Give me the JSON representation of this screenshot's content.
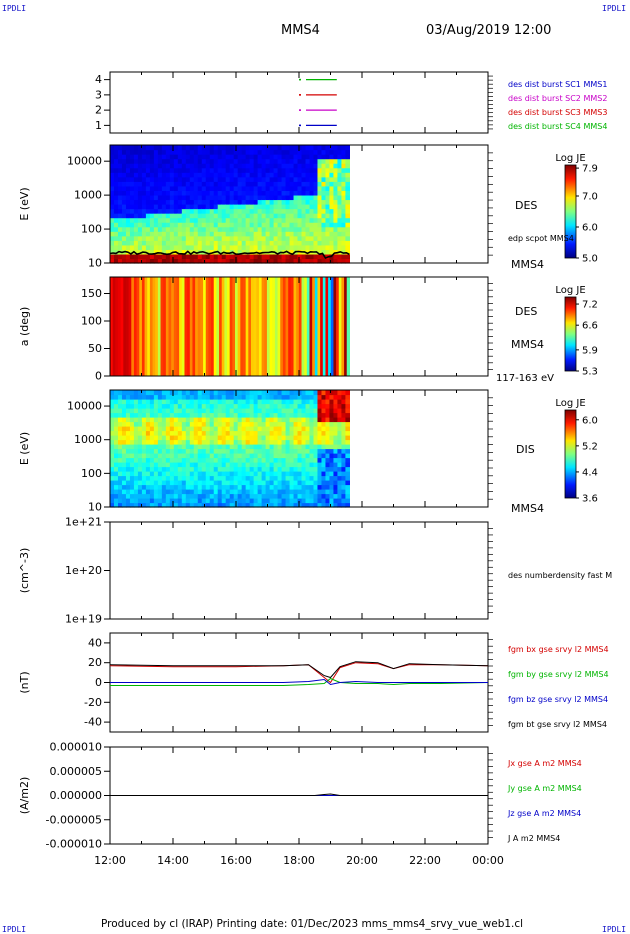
{
  "header": {
    "corner_label": "IPDLI",
    "title": "MMS4",
    "date": "03/Aug/2019 12:00"
  },
  "footer": {
    "text": "Produced by cl (IRAP)   Printing date: 01/Dec/2023   mms_mms4_srvy_vue_web1.cl"
  },
  "colors": {
    "red": "#d40000",
    "green": "#00b400",
    "blue": "#0000c8",
    "magenta": "#c800c8",
    "black": "#000000"
  },
  "time_axis": {
    "ticks": [
      "12:00",
      "14:00",
      "16:00",
      "18:00",
      "20:00",
      "22:00",
      "00:00"
    ],
    "range_hours": [
      12,
      24
    ],
    "data_end_hour": 19.6
  },
  "chart_data": [
    {
      "type": "line",
      "panel": "burst",
      "ylabel": "",
      "yticks": [
        "4",
        "3",
        "2",
        "1"
      ],
      "ylim": [
        0.5,
        4.5
      ],
      "series": [
        {
          "name": "des dist burst SC1 MMS1",
          "color": "#0000c8",
          "level": 1
        },
        {
          "name": "des dist burst SC2 MMS2",
          "color": "#c800c8",
          "level": 2
        },
        {
          "name": "des dist burst SC3 MMS3",
          "color": "#d40000",
          "level": 3
        },
        {
          "name": "des dist burst SC4 MMS4",
          "color": "#00b400",
          "level": 4
        }
      ],
      "burst_interval_hours": [
        18.0,
        19.2
      ]
    },
    {
      "type": "heatmap",
      "panel": "des-energy",
      "ylabel": "E (eV)",
      "scale": "log",
      "yticks": [
        "10000",
        "1000",
        "100",
        "10"
      ],
      "ylim": [
        10,
        30000
      ],
      "colorbar": {
        "title": "Log JE",
        "ticks": [
          "7.9",
          "7.0",
          "6.0",
          "5.0"
        ],
        "range": [
          5.0,
          8.0
        ]
      },
      "right_labels": [
        "DES",
        "edp scpot MMS4",
        "MMS4"
      ]
    },
    {
      "type": "heatmap",
      "panel": "des-pitch",
      "ylabel": "a (deg)",
      "yticks": [
        "150",
        "100",
        "50",
        "0"
      ],
      "ylim": [
        0,
        180
      ],
      "colorbar": {
        "title": "Log JE",
        "ticks": [
          "7.2",
          "6.6",
          "5.9",
          "5.3"
        ],
        "range": [
          5.3,
          7.4
        ]
      },
      "right_labels": [
        "DES",
        "MMS4",
        "117-163 eV"
      ]
    },
    {
      "type": "heatmap",
      "panel": "dis-energy",
      "ylabel": "E (eV)",
      "scale": "log",
      "yticks": [
        "10000",
        "1000",
        "100",
        "10"
      ],
      "ylim": [
        10,
        30000
      ],
      "colorbar": {
        "title": "Log JE",
        "ticks": [
          "6.0",
          "5.2",
          "4.4",
          "3.6"
        ],
        "range": [
          3.6,
          6.3
        ]
      },
      "right_labels": [
        "DIS",
        "MMS4"
      ]
    },
    {
      "type": "line",
      "panel": "density",
      "ylabel": "(cm^-3)",
      "scale": "log",
      "yticks": [
        "1e+21",
        "1e+20",
        "1e+19"
      ],
      "ylim": [
        1e+19,
        1e+21
      ],
      "series": [
        {
          "name": "des numberdensity fast M",
          "color": "#000000",
          "values": []
        }
      ]
    },
    {
      "type": "line",
      "panel": "fgm",
      "ylabel": "(nT)",
      "yticks": [
        "40",
        "20",
        "0",
        "-20",
        "-40"
      ],
      "ylim": [
        -50,
        50
      ],
      "x": [
        12.0,
        14.0,
        16.0,
        17.5,
        18.3,
        18.8,
        19.0,
        19.3,
        19.8,
        20.5,
        21.0,
        21.5,
        22.5,
        24.0
      ],
      "series": [
        {
          "name": "fgm bx gse srvy l2 MMS4",
          "color": "#d40000",
          "values": [
            17,
            16,
            16,
            17,
            18,
            5,
            0,
            15,
            20,
            19,
            14,
            18,
            18,
            17
          ]
        },
        {
          "name": "fgm by gse srvy l2 MMS4",
          "color": "#00b400",
          "values": [
            -3,
            -3,
            -3,
            -3,
            -2,
            -1,
            4,
            0,
            -1,
            -1,
            -2,
            -1,
            -1,
            0
          ]
        },
        {
          "name": "fgm bz gse srvy l2 MMS4",
          "color": "#0000c8",
          "values": [
            0,
            0,
            0,
            0,
            1,
            3,
            -2,
            0,
            1,
            0,
            0,
            0,
            0,
            0
          ]
        },
        {
          "name": "fgm bt gse srvy l2 MMS4",
          "color": "#000000",
          "values": [
            18,
            17,
            17,
            17,
            18,
            7,
            5,
            16,
            21,
            20,
            14,
            19,
            18,
            17
          ]
        }
      ]
    },
    {
      "type": "line",
      "panel": "current",
      "ylabel": "(A/m2)",
      "yticks": [
        "0.000010",
        "0.000005",
        "0.000000",
        "-0.000005",
        "-0.000010"
      ],
      "ylim": [
        -1e-05,
        1e-05
      ],
      "x": [
        12.0,
        18.5,
        18.8,
        19.0,
        19.3,
        24.0
      ],
      "series": [
        {
          "name": "Jx gse A m2 MMS4",
          "color": "#d40000",
          "values": [
            0,
            0,
            0,
            0,
            0,
            0
          ]
        },
        {
          "name": "Jy gse A m2 MMS4",
          "color": "#00b400",
          "values": [
            0,
            0,
            0,
            0,
            0,
            0
          ]
        },
        {
          "name": "Jz gse A m2 MMS4",
          "color": "#0000c8",
          "values": [
            0,
            0,
            0,
            0,
            0,
            0
          ]
        },
        {
          "name": "J A m2 MMS4",
          "color": "#000000",
          "values": [
            0,
            0,
            2e-07,
            3e-07,
            0,
            0
          ]
        }
      ]
    }
  ]
}
